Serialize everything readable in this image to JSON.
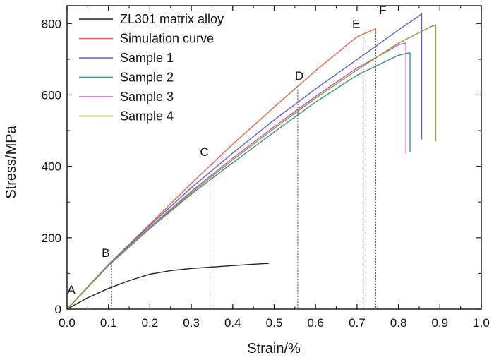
{
  "chart_data": {
    "type": "line",
    "xlabel": "Strain/%",
    "ylabel": "Stress/MPa",
    "xlim": [
      0.0,
      1.0
    ],
    "ylim": [
      0,
      850
    ],
    "xticks": [
      "0.0",
      "0.1",
      "0.2",
      "0.3",
      "0.4",
      "0.5",
      "0.6",
      "0.7",
      "0.8",
      "0.9",
      "1.0"
    ],
    "xtick_values": [
      0.0,
      0.1,
      0.2,
      0.3,
      0.4,
      0.5,
      0.6,
      0.7,
      0.8,
      0.9,
      1.0
    ],
    "yticks": [
      "0",
      "200",
      "400",
      "600",
      "800"
    ],
    "ytick_values": [
      0,
      200,
      400,
      600,
      800
    ],
    "legend_position": "top-left",
    "grid": false,
    "series": [
      {
        "name": "ZL301 matrix alloy",
        "color": "#222222",
        "x": [
          0.0,
          0.05,
          0.1,
          0.15,
          0.2,
          0.25,
          0.3,
          0.35,
          0.4,
          0.45,
          0.487
        ],
        "y": [
          0,
          32,
          58,
          80,
          98,
          108,
          114,
          118,
          122,
          126,
          128
        ]
      },
      {
        "name": "Simulation curve",
        "color": "#e8664a",
        "x": [
          0.0,
          0.1,
          0.2,
          0.3,
          0.4,
          0.5,
          0.6,
          0.7,
          0.745,
          0.745
        ],
        "y": [
          0,
          125,
          238,
          352,
          462,
          566,
          668,
          763,
          785,
          770
        ]
      },
      {
        "name": "Sample 1",
        "color": "#5b5fc7",
        "x": [
          0.0,
          0.1,
          0.2,
          0.3,
          0.4,
          0.5,
          0.6,
          0.7,
          0.8,
          0.852,
          0.856,
          0.856
        ],
        "y": [
          0,
          125,
          235,
          340,
          437,
          530,
          617,
          699,
          782,
          823,
          828,
          475
        ]
      },
      {
        "name": "Sample 2",
        "color": "#3f8f8f",
        "x": [
          0.0,
          0.1,
          0.2,
          0.3,
          0.4,
          0.5,
          0.6,
          0.7,
          0.8,
          0.826,
          0.828,
          0.828
        ],
        "y": [
          0,
          122,
          226,
          322,
          410,
          496,
          580,
          655,
          711,
          718,
          717,
          440
        ]
      },
      {
        "name": "Sample 3",
        "color": "#c05ac8",
        "x": [
          0.0,
          0.1,
          0.2,
          0.3,
          0.4,
          0.5,
          0.6,
          0.7,
          0.8,
          0.816,
          0.818,
          0.818
        ],
        "y": [
          0,
          123,
          230,
          330,
          423,
          511,
          596,
          675,
          740,
          745,
          744,
          435
        ]
      },
      {
        "name": "Sample 4",
        "color": "#8c9a3c",
        "x": [
          0.0,
          0.1,
          0.2,
          0.3,
          0.4,
          0.5,
          0.6,
          0.7,
          0.8,
          0.88,
          0.89,
          0.89
        ],
        "y": [
          0,
          122,
          228,
          326,
          418,
          506,
          591,
          670,
          745,
          792,
          796,
          470
        ]
      }
    ],
    "reference_points": [
      {
        "label": "A",
        "x": 0.0,
        "y": 0
      },
      {
        "label": "B",
        "x": 0.107,
        "y": 130
      },
      {
        "label": "C",
        "x": 0.345,
        "y": 405
      },
      {
        "label": "D",
        "x": 0.557,
        "y": 615
      },
      {
        "label": "E",
        "x": 0.715,
        "y": 760
      },
      {
        "label": "F",
        "x": 0.745,
        "y": 783
      }
    ]
  }
}
